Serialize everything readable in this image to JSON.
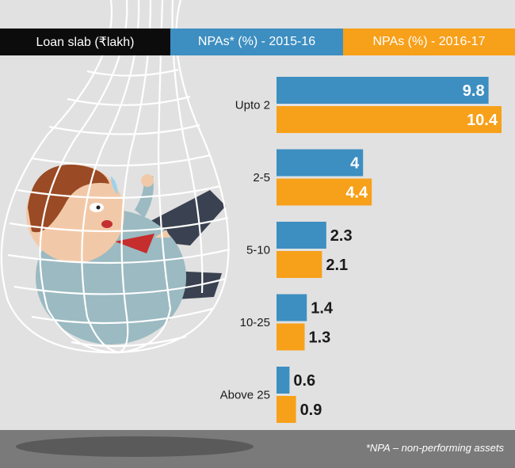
{
  "header": {
    "col0": "Loan slab (₹lakh)",
    "col1": "NPAs* (%) - 2015-16",
    "col2": "NPAs (%) - 2016-17"
  },
  "footnote": "*NPA – non-performing assets",
  "colors": {
    "series_2015_16": "#3d8ec1",
    "series_2016_17": "#f7a01a",
    "background": "#e1e1e1",
    "footer": "#7a7a7a"
  },
  "chart_data": {
    "type": "bar",
    "orientation": "horizontal",
    "categories": [
      "Upto 2",
      "2-5",
      "5-10",
      "10-25",
      "Above 25"
    ],
    "series": [
      {
        "name": "NPAs* (%) - 2015-16",
        "values": [
          9.8,
          4,
          2.3,
          1.4,
          0.6
        ]
      },
      {
        "name": "NPAs (%) - 2016-17",
        "values": [
          10.4,
          4.4,
          2.1,
          1.3,
          0.9
        ]
      }
    ],
    "value_labels": [
      [
        "9.8",
        "10.4"
      ],
      [
        "4",
        "4.4"
      ],
      [
        "2.3",
        "2.1"
      ],
      [
        "1.4",
        "1.3"
      ],
      [
        "0.6",
        "0.9"
      ]
    ],
    "xlim": [
      0,
      10.4
    ],
    "grid": false
  }
}
